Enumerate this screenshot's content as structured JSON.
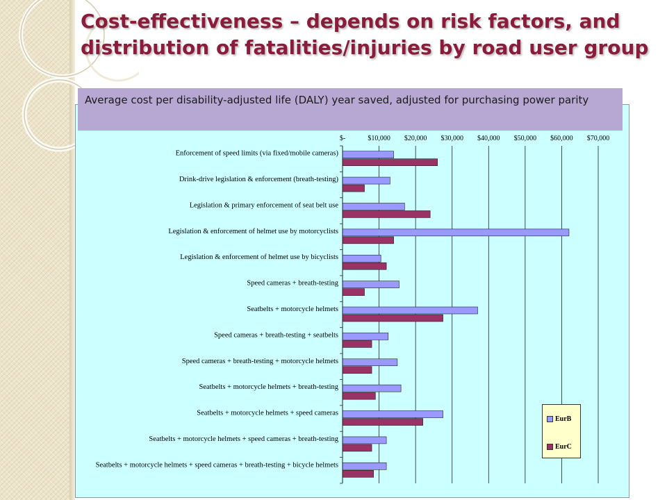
{
  "slide": {
    "title": "Cost-effectiveness – depends on risk factors, and distribution of fatalities/injuries by road user group",
    "subtitle": "Average cost per disability-adjusted life (DALY) year saved,  adjusted for purchasing power parity"
  },
  "colors": {
    "title": "#8b1c3b",
    "banner": "#b6a8d2",
    "plot_bg": "#ccffff",
    "eurb": "#9999ff",
    "eurc": "#993366",
    "legend_bg": "#ffffcc"
  },
  "chart_data": {
    "type": "bar",
    "orientation": "horizontal",
    "title": "Average cost per disability-adjusted life (DALY) year saved,  adjusted for purchasing power parity",
    "xlim": [
      0,
      70000
    ],
    "x_ticks": [
      0,
      10000,
      20000,
      30000,
      40000,
      50000,
      60000,
      70000
    ],
    "x_tick_labels": [
      "$-",
      "$10,000",
      "$20,000",
      "$30,000",
      "$40,000",
      "$50,000",
      "$60,000",
      "$70,000"
    ],
    "x_axis_position": "top",
    "grid": "vertical",
    "legend_position": "bottom-right",
    "categories": [
      "Enforcement of speed limits (via fixed/mobile cameras)",
      "Drink-drive legislation & enforcement (breath-testing)",
      "Legislation & primary enforcement of seat belt use",
      "Legislation & enforcement of helmet use by motorcyclists",
      "Legislation & enforcement of helmet use by bicyclists",
      "Speed cameras + breath-testing",
      "Seatbelts + motorcycle helmets",
      "Speed cameras + breath-testing + seatbelts",
      "Speed cameras + breath-testing + motorcycle helmets",
      "Seatbelts + motorcycle helmets + breath-testing",
      "Seatbelts + motorcycle helmets + speed cameras",
      "Seatbelts + motorcycle helmets + speed cameras + breath-testing",
      "Seatbelts + motorcycle helmets + speed cameras + breath-testing + bicycle helmets"
    ],
    "series": [
      {
        "name": "EurB",
        "color": "#9999ff",
        "values": [
          14000,
          13000,
          17000,
          62000,
          10500,
          15500,
          37000,
          12500,
          15000,
          16000,
          27500,
          12000,
          12000
        ]
      },
      {
        "name": "EurC",
        "color": "#993366",
        "values": [
          26000,
          6000,
          24000,
          14000,
          12000,
          6000,
          27500,
          8000,
          8000,
          9000,
          22000,
          8000,
          8500
        ]
      }
    ]
  }
}
